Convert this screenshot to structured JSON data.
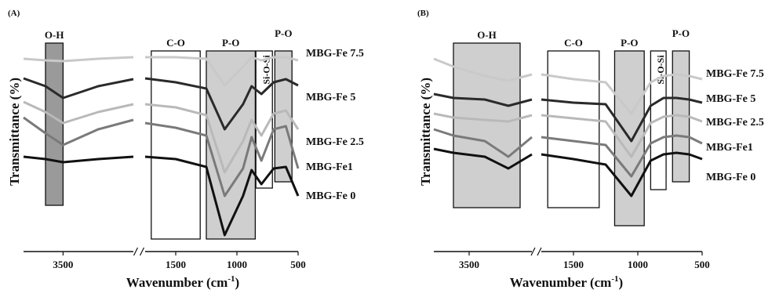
{
  "chart_data": [
    {
      "type": "line",
      "panel_label": "(A)",
      "xlabel": "Wavenumber (cm",
      "xlabel_sup": "-1",
      "xlabel_close": ")",
      "ylabel": "Transmittance (%)",
      "x_ticks": [
        "3500",
        "1500",
        "1000",
        "500"
      ],
      "x_tick_values": [
        3500,
        1500,
        1000,
        500
      ],
      "x_segments": [
        [
          3950,
          2700
        ],
        [
          1750,
          500
        ]
      ],
      "bands": [
        {
          "label": "O-H",
          "from": 3700,
          "to": 3500,
          "color": "#9a9a9a"
        },
        {
          "label": "C-O",
          "from": 1700,
          "to": 1300,
          "color": "#ffffff"
        },
        {
          "label": "P-O",
          "from": 1250,
          "to": 850,
          "color": "#cfcfcf"
        },
        {
          "label": "Si-O-Si",
          "from": 845,
          "to": 710,
          "color": "#ffffff"
        },
        {
          "label": "P-O",
          "from": 690,
          "to": 550,
          "color": "#cfcfcf"
        }
      ],
      "series": [
        {
          "name": "MBG-Fe 7.5",
          "color": "#c9c9c9",
          "points": [
            [
              3950,
              10
            ],
            [
              3700,
              12
            ],
            [
              3500,
              13
            ],
            [
              3100,
              10
            ],
            [
              2700,
              8
            ],
            [
              1750,
              8
            ],
            [
              1500,
              8
            ],
            [
              1250,
              10
            ],
            [
              1100,
              44
            ],
            [
              950,
              20
            ],
            [
              880,
              8
            ],
            [
              800,
              12
            ],
            [
              700,
              8
            ],
            [
              600,
              8
            ],
            [
              500,
              12
            ]
          ]
        },
        {
          "name": "MBG-Fe 5",
          "color": "#2a2a2a",
          "points": [
            [
              3950,
              35
            ],
            [
              3700,
              45
            ],
            [
              3500,
              60
            ],
            [
              3100,
              45
            ],
            [
              2700,
              36
            ],
            [
              1750,
              35
            ],
            [
              1500,
              40
            ],
            [
              1250,
              48
            ],
            [
              1100,
              100
            ],
            [
              950,
              68
            ],
            [
              880,
              45
            ],
            [
              800,
              55
            ],
            [
              700,
              40
            ],
            [
              600,
              36
            ],
            [
              500,
              44
            ]
          ]
        },
        {
          "name": "MBG-Fe 2.5",
          "color": "#b9b9b9",
          "points": [
            [
              3950,
              65
            ],
            [
              3700,
              78
            ],
            [
              3500,
              92
            ],
            [
              3100,
              78
            ],
            [
              2700,
              68
            ],
            [
              1750,
              68
            ],
            [
              1500,
              72
            ],
            [
              1250,
              82
            ],
            [
              1100,
              155
            ],
            [
              950,
              115
            ],
            [
              880,
              88
            ],
            [
              800,
              108
            ],
            [
              700,
              80
            ],
            [
              600,
              76
            ],
            [
              500,
              100
            ]
          ]
        },
        {
          "name": "MBG-Fe1",
          "color": "#7a7a7a",
          "points": [
            [
              3950,
              85
            ],
            [
              3700,
              105
            ],
            [
              3500,
              120
            ],
            [
              3100,
              100
            ],
            [
              2700,
              88
            ],
            [
              1750,
              92
            ],
            [
              1500,
              98
            ],
            [
              1250,
              108
            ],
            [
              1100,
              185
            ],
            [
              950,
              150
            ],
            [
              880,
              110
            ],
            [
              800,
              140
            ],
            [
              700,
              100
            ],
            [
              600,
              96
            ],
            [
              500,
              150
            ]
          ]
        },
        {
          "name": "MBG-Fe 0",
          "color": "#111111",
          "points": [
            [
              3950,
              135
            ],
            [
              3700,
              138
            ],
            [
              3500,
              142
            ],
            [
              3100,
              138
            ],
            [
              2700,
              135
            ],
            [
              1750,
              135
            ],
            [
              1500,
              138
            ],
            [
              1250,
              148
            ],
            [
              1100,
              235
            ],
            [
              950,
              185
            ],
            [
              880,
              152
            ],
            [
              800,
              170
            ],
            [
              700,
              150
            ],
            [
              600,
              148
            ],
            [
              500,
              185
            ]
          ]
        }
      ]
    },
    {
      "type": "line",
      "panel_label": "(B)",
      "xlabel": "Wavenumber (cm",
      "xlabel_sup": "-1",
      "xlabel_close": ")",
      "ylabel": "Transmittance (%)",
      "x_ticks": [
        "3500",
        "1500",
        "1000",
        "500"
      ],
      "x_tick_values": [
        3500,
        1500,
        1000,
        500
      ],
      "x_segments": [
        [
          3950,
          2700
        ],
        [
          1750,
          500
        ]
      ],
      "bands": [
        {
          "label": "O-H",
          "from": 3700,
          "to": 2850,
          "color": "#cfcfcf"
        },
        {
          "label": "C-O",
          "from": 1700,
          "to": 1300,
          "color": "#ffffff"
        },
        {
          "label": "P-O",
          "from": 1180,
          "to": 950,
          "color": "#cfcfcf"
        },
        {
          "label": "Si-O-Si",
          "from": 900,
          "to": 780,
          "color": "#ffffff"
        },
        {
          "label": "P-O",
          "from": 730,
          "to": 600,
          "color": "#cfcfcf"
        }
      ],
      "series": [
        {
          "name": "MBG-Fe 7.5",
          "color": "#c9c9c9",
          "points": [
            [
              3950,
              10
            ],
            [
              3700,
              20
            ],
            [
              3300,
              32
            ],
            [
              3000,
              38
            ],
            [
              2700,
              30
            ],
            [
              1750,
              30
            ],
            [
              1500,
              36
            ],
            [
              1250,
              40
            ],
            [
              1050,
              80
            ],
            [
              900,
              40
            ],
            [
              800,
              32
            ],
            [
              700,
              30
            ],
            [
              600,
              32
            ],
            [
              500,
              36
            ]
          ]
        },
        {
          "name": "MBG-Fe 5",
          "color": "#2a2a2a",
          "points": [
            [
              3950,
              55
            ],
            [
              3700,
              60
            ],
            [
              3300,
              62
            ],
            [
              3000,
              70
            ],
            [
              2700,
              62
            ],
            [
              1750,
              62
            ],
            [
              1500,
              66
            ],
            [
              1250,
              68
            ],
            [
              1050,
              115
            ],
            [
              900,
              70
            ],
            [
              800,
              60
            ],
            [
              700,
              60
            ],
            [
              600,
              62
            ],
            [
              500,
              66
            ]
          ]
        },
        {
          "name": "MBG-Fe 2.5",
          "color": "#b9b9b9",
          "points": [
            [
              3950,
              80
            ],
            [
              3700,
              85
            ],
            [
              3300,
              88
            ],
            [
              3000,
              90
            ],
            [
              2700,
              82
            ],
            [
              1750,
              82
            ],
            [
              1500,
              86
            ],
            [
              1250,
              90
            ],
            [
              1050,
              135
            ],
            [
              900,
              92
            ],
            [
              800,
              84
            ],
            [
              700,
              82
            ],
            [
              600,
              84
            ],
            [
              500,
              90
            ]
          ]
        },
        {
          "name": "MBG-Fe1",
          "color": "#7a7a7a",
          "points": [
            [
              3950,
              100
            ],
            [
              3700,
              108
            ],
            [
              3300,
              115
            ],
            [
              3000,
              135
            ],
            [
              2700,
              110
            ],
            [
              1750,
              110
            ],
            [
              1500,
              115
            ],
            [
              1250,
              120
            ],
            [
              1050,
              160
            ],
            [
              900,
              118
            ],
            [
              800,
              110
            ],
            [
              700,
              108
            ],
            [
              600,
              110
            ],
            [
              500,
              118
            ]
          ]
        },
        {
          "name": "MBG-Fe 0",
          "color": "#111111",
          "points": [
            [
              3950,
              125
            ],
            [
              3700,
              130
            ],
            [
              3300,
              135
            ],
            [
              3000,
              150
            ],
            [
              2700,
              132
            ],
            [
              1750,
              132
            ],
            [
              1500,
              138
            ],
            [
              1250,
              145
            ],
            [
              1050,
              185
            ],
            [
              900,
              140
            ],
            [
              800,
              132
            ],
            [
              700,
              130
            ],
            [
              600,
              132
            ],
            [
              500,
              138
            ]
          ]
        }
      ]
    }
  ]
}
